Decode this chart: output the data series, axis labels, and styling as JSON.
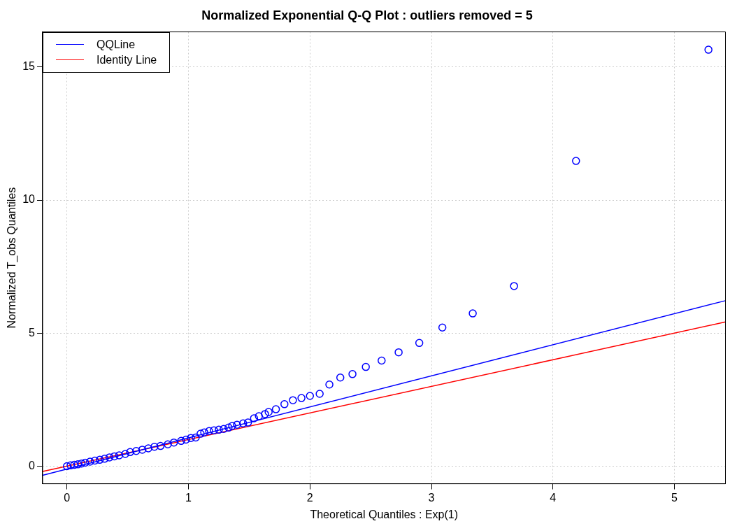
{
  "chart_data": {
    "type": "scatter",
    "title": "Normalized Exponential Q-Q Plot : outliers removed = 5",
    "xlabel": "Theoretical Quantiles : Exp(1)",
    "ylabel": "Normalized T_obs Quantiles",
    "xlim": [
      -0.2,
      5.42
    ],
    "ylim": [
      -0.66,
      16.32
    ],
    "xticks": [
      0,
      1,
      2,
      3,
      4,
      5
    ],
    "yticks": [
      0,
      5,
      10,
      15
    ],
    "grid": true,
    "legend": "top left",
    "marker": "circle",
    "series": [
      {
        "color": "#0000ff",
        "x": [
          0.0,
          0.03,
          0.06,
          0.09,
          0.12,
          0.15,
          0.19,
          0.23,
          0.27,
          0.31,
          0.35,
          0.39,
          0.43,
          0.48,
          0.52,
          0.57,
          0.62,
          0.67,
          0.72,
          0.77,
          0.83,
          0.88,
          0.94,
          0.98,
          1.02,
          1.06,
          1.1,
          1.13,
          1.17,
          1.21,
          1.25,
          1.29,
          1.33,
          1.36,
          1.4,
          1.45,
          1.49,
          1.54,
          1.58,
          1.63,
          1.66,
          1.72,
          1.79,
          1.86,
          1.93,
          2.0,
          2.08,
          2.16,
          2.25,
          2.35,
          2.46,
          2.59,
          2.73,
          2.9,
          3.09,
          3.34,
          3.68,
          4.19,
          5.28
        ],
        "values": [
          0.0,
          0.03,
          0.05,
          0.07,
          0.1,
          0.13,
          0.17,
          0.21,
          0.24,
          0.28,
          0.33,
          0.37,
          0.41,
          0.46,
          0.53,
          0.57,
          0.62,
          0.67,
          0.73,
          0.76,
          0.82,
          0.89,
          0.95,
          1.0,
          1.06,
          1.08,
          1.22,
          1.27,
          1.32,
          1.35,
          1.37,
          1.4,
          1.45,
          1.51,
          1.56,
          1.61,
          1.64,
          1.8,
          1.88,
          1.96,
          2.04,
          2.14,
          2.33,
          2.48,
          2.56,
          2.64,
          2.72,
          3.07,
          3.33,
          3.46,
          3.73,
          3.97,
          4.28,
          4.63,
          5.21,
          5.74,
          6.77,
          11.47,
          15.65
        ]
      },
      {
        "type": "line",
        "name": "QQLine",
        "color": "#0000ff",
        "marker": "none",
        "x": [
          -0.2,
          5.42
        ],
        "values": [
          -0.34,
          6.22
        ]
      },
      {
        "type": "line",
        "name": "Identity Line",
        "color": "#ff0000",
        "marker": "none",
        "x": [
          -0.2,
          5.42
        ],
        "values": [
          -0.2,
          5.42
        ]
      }
    ]
  }
}
